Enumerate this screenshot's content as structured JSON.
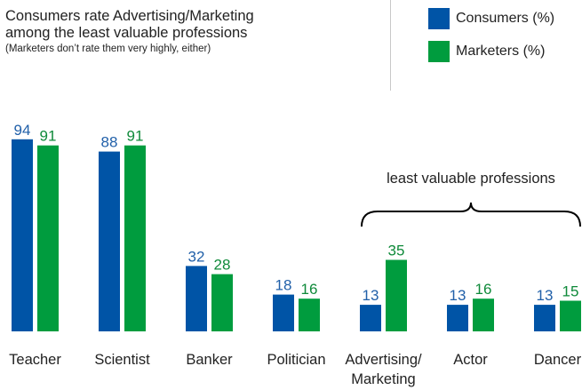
{
  "header": {
    "title_line1": "Consumers rate Advertising/Marketing",
    "title_line2": "among the least valuable professions",
    "subtitle": "(Marketers don’t rate them very highly, either)"
  },
  "legend": [
    {
      "label": "Consumers (%)",
      "color": "#0054a6"
    },
    {
      "label": "Marketers (%)",
      "color": "#009c3e"
    }
  ],
  "chart_data": {
    "type": "bar",
    "categories": [
      "Teacher",
      "Scientist",
      "Banker",
      "Politician",
      "Advertising/ Marketing",
      "Actor",
      "Dancer"
    ],
    "series": [
      {
        "name": "Consumers (%)",
        "values": [
          94,
          88,
          32,
          18,
          13,
          13,
          13
        ],
        "color": "#0054a6",
        "label_color": "#2160a9"
      },
      {
        "name": "Marketers (%)",
        "values": [
          91,
          91,
          28,
          16,
          35,
          16,
          15
        ],
        "color": "#009c3e",
        "label_color": "#0f8a3a"
      }
    ],
    "ylim": [
      0,
      100
    ],
    "annotation": "least valuable professions",
    "annotation_span": [
      "Advertising/ Marketing",
      "Dancer"
    ]
  }
}
